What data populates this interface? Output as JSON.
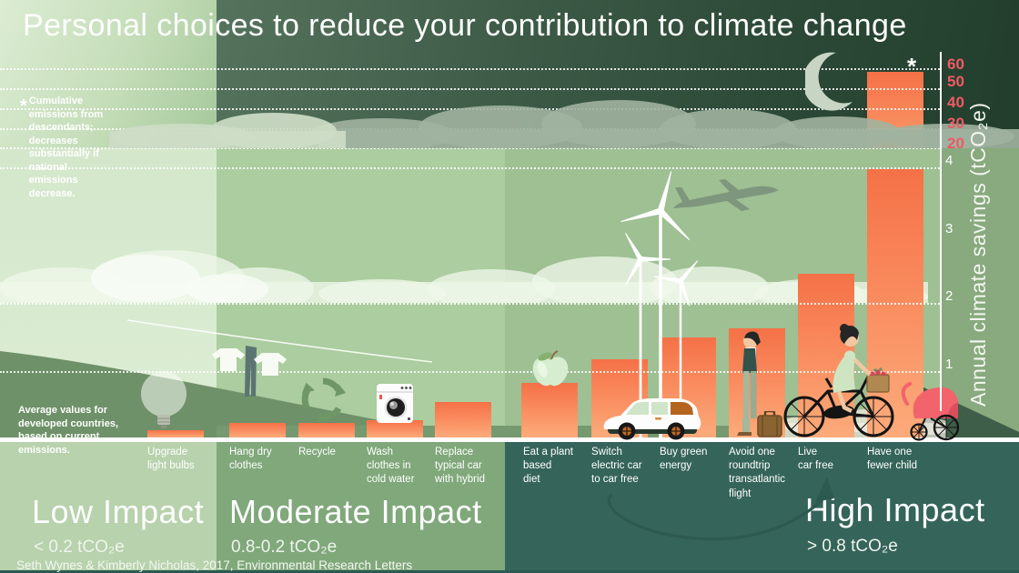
{
  "title": "Personal choices to reduce your contribution to climate change",
  "footnote_star": "Cumulative emissions from descendants; decreases substantially if national emissions decrease.",
  "footnote_avg": "Average values for developed countries, based on current emissions.",
  "credit": "Seth Wynes & Kimberly Nicholas, 2017, Environmental Research Letters",
  "star_symbol": "*",
  "axis": {
    "label": "Annual climate savings (tCO₂e)",
    "upper_ticks": [
      "60",
      "50",
      "40",
      "30",
      "20"
    ],
    "main_ticks": [
      "4",
      "3",
      "2",
      "1"
    ]
  },
  "labels": [
    "Upgrade\nlight bulbs",
    "Hang dry\nclothes",
    "Recycle",
    "Wash\nclothes in\ncold water",
    "Replace\ntypical car\nwith hybrid",
    "Eat a plant\nbased\ndiet",
    "Switch\nelectric car\nto car free",
    "Buy green\nenergy",
    "Avoid one\nroundtrip\ntransatlantic\nflight",
    "Live\ncar free",
    "Have one\nfewer child"
  ],
  "sections": [
    {
      "name": "Low Impact",
      "range": "< 0.2 tCO₂e"
    },
    {
      "name": "Moderate Impact",
      "range": "0.8-0.2 tCO₂e"
    },
    {
      "name": "High Impact",
      "range": "> 0.8 tCO₂e"
    }
  ],
  "chart_data": {
    "type": "bar",
    "title": "Personal choices to reduce your contribution to climate change",
    "ylabel": "Annual climate savings (tCO₂e)",
    "categories": [
      "Upgrade light bulbs",
      "Hang dry clothes",
      "Recycle",
      "Wash clothes in cold water",
      "Replace typical car with hybrid",
      "Eat a plant based diet",
      "Switch electric car to car free",
      "Buy green energy",
      "Avoid one roundtrip transatlantic flight",
      "Live car free",
      "Have one fewer child"
    ],
    "values": [
      0.1,
      0.21,
      0.21,
      0.25,
      0.52,
      0.8,
      1.15,
      1.47,
      1.6,
      2.4,
      58.6
    ],
    "impact_group": [
      "low",
      "moderate",
      "moderate",
      "moderate",
      "moderate",
      "high",
      "high",
      "high",
      "high",
      "high",
      "high"
    ],
    "ylim_main": [
      0,
      4
    ],
    "ylim_upper": [
      20,
      60
    ],
    "grid": true,
    "bar_color_top": "#f57147",
    "bar_color_bottom": "#fcab7b",
    "upper_tick_color": "#ef5a64",
    "asterisk_on": "Have one fewer child"
  },
  "colors": {
    "accent_bar": "#f57147",
    "upper_ticks": "#ef5a64",
    "pram_pink": "#f2646c",
    "arrow_teal": "#2d5a50",
    "dark_sky": "#223d2c",
    "low_zone": "#b7d2ac",
    "moderate_zone": "#80a87b",
    "high_zone": "#35645a"
  }
}
